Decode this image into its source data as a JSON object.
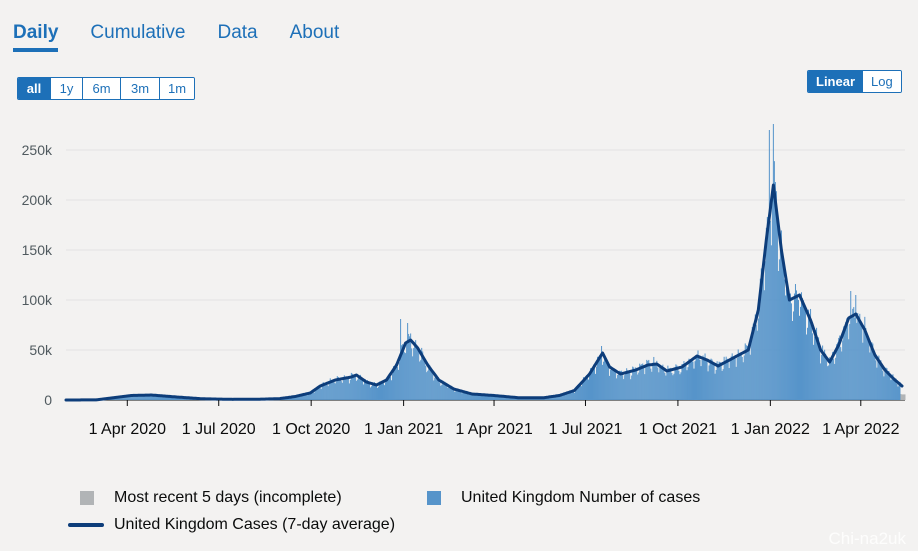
{
  "tabs": [
    {
      "label": "Daily",
      "active": true
    },
    {
      "label": "Cumulative",
      "active": false
    },
    {
      "label": "Data",
      "active": false
    },
    {
      "label": "About",
      "active": false
    }
  ],
  "range_buttons": [
    {
      "label": "all",
      "active": true
    },
    {
      "label": "1y",
      "active": false
    },
    {
      "label": "6m",
      "active": false
    },
    {
      "label": "3m",
      "active": false
    },
    {
      "label": "1m",
      "active": false
    }
  ],
  "scale_buttons": [
    {
      "label": "Linear",
      "active": true
    },
    {
      "label": "Log",
      "active": false
    }
  ],
  "legend": {
    "incomplete": "Most recent 5 days (incomplete)",
    "cases": "United Kingdom Number of cases",
    "average": "United Kingdom Cases (7-day average)"
  },
  "colors": {
    "bar": "#5694ca",
    "line": "#0d3d7a",
    "incomplete": "#b1b4b6",
    "accent": "#1d70b8"
  },
  "watermark": "Chi-na2uk",
  "chart_data": {
    "type": "bar",
    "grid": true,
    "ylim": [
      0,
      280000
    ],
    "yticks": [
      0,
      50000,
      100000,
      150000,
      200000,
      250000
    ],
    "ytick_labels": [
      "0",
      "50k",
      "100k",
      "150k",
      "200k",
      "250k"
    ],
    "xticks": [
      "2020-04-01",
      "2020-07-01",
      "2020-10-01",
      "2021-01-01",
      "2021-04-01",
      "2021-07-01",
      "2021-10-01",
      "2022-01-01",
      "2022-04-01"
    ],
    "xtick_labels": [
      "1 Apr 2020",
      "1 Jul 2020",
      "1 Oct 2020",
      "1 Jan 2021",
      "1 Apr 2021",
      "1 Jul 2021",
      "1 Oct 2021",
      "1 Jan 2022",
      "1 Apr 2022"
    ],
    "x_start": "2020-01-31",
    "x_end": "2022-05-15",
    "series": [
      {
        "name": "United Kingdom Cases (7-day average)",
        "type": "line",
        "points": [
          [
            "2020-01-31",
            0
          ],
          [
            "2020-03-01",
            100
          ],
          [
            "2020-03-20",
            2500
          ],
          [
            "2020-04-05",
            4500
          ],
          [
            "2020-04-25",
            5000
          ],
          [
            "2020-05-20",
            3000
          ],
          [
            "2020-06-15",
            1200
          ],
          [
            "2020-07-15",
            650
          ],
          [
            "2020-08-10",
            800
          ],
          [
            "2020-08-30",
            1300
          ],
          [
            "2020-09-15",
            3500
          ],
          [
            "2020-09-30",
            7000
          ],
          [
            "2020-10-10",
            14000
          ],
          [
            "2020-10-25",
            20000
          ],
          [
            "2020-11-10",
            23000
          ],
          [
            "2020-11-15",
            25000
          ],
          [
            "2020-11-25",
            18000
          ],
          [
            "2020-12-05",
            15000
          ],
          [
            "2020-12-15",
            20000
          ],
          [
            "2020-12-25",
            35000
          ],
          [
            "2021-01-03",
            57000
          ],
          [
            "2021-01-08",
            60000
          ],
          [
            "2021-01-15",
            52000
          ],
          [
            "2021-01-25",
            35000
          ],
          [
            "2021-02-05",
            20000
          ],
          [
            "2021-02-20",
            11000
          ],
          [
            "2021-03-10",
            6000
          ],
          [
            "2021-04-01",
            4500
          ],
          [
            "2021-04-25",
            2300
          ],
          [
            "2021-05-20",
            2200
          ],
          [
            "2021-06-05",
            4500
          ],
          [
            "2021-06-20",
            9500
          ],
          [
            "2021-07-05",
            26000
          ],
          [
            "2021-07-18",
            47000
          ],
          [
            "2021-07-25",
            33000
          ],
          [
            "2021-08-05",
            26000
          ],
          [
            "2021-08-20",
            30000
          ],
          [
            "2021-09-01",
            35000
          ],
          [
            "2021-09-10",
            36000
          ],
          [
            "2021-09-20",
            29000
          ],
          [
            "2021-10-05",
            33000
          ],
          [
            "2021-10-20",
            44000
          ],
          [
            "2021-10-30",
            40000
          ],
          [
            "2021-11-10",
            34000
          ],
          [
            "2021-11-25",
            42000
          ],
          [
            "2021-12-10",
            50000
          ],
          [
            "2021-12-20",
            90000
          ],
          [
            "2021-12-28",
            160000
          ],
          [
            "2022-01-04",
            215000
          ],
          [
            "2022-01-12",
            150000
          ],
          [
            "2022-01-20",
            100000
          ],
          [
            "2022-01-30",
            105000
          ],
          [
            "2022-02-10",
            80000
          ],
          [
            "2022-02-20",
            50000
          ],
          [
            "2022-03-01",
            38000
          ],
          [
            "2022-03-10",
            55000
          ],
          [
            "2022-03-20",
            82000
          ],
          [
            "2022-03-27",
            86000
          ],
          [
            "2022-04-05",
            70000
          ],
          [
            "2022-04-15",
            45000
          ],
          [
            "2022-04-25",
            30000
          ],
          [
            "2022-05-05",
            20000
          ],
          [
            "2022-05-12",
            14000
          ]
        ]
      },
      {
        "name": "United Kingdom Number of cases",
        "type": "bar",
        "spikes": [
          [
            "2020-12-29",
            81000
          ],
          [
            "2021-01-05",
            77000
          ],
          [
            "2021-07-17",
            54000
          ],
          [
            "2021-12-29",
            183000
          ],
          [
            "2021-12-31",
            270000
          ],
          [
            "2022-01-04",
            276000
          ],
          [
            "2022-01-06",
            218000
          ],
          [
            "2022-03-22",
            109000
          ],
          [
            "2022-03-27",
            105000
          ]
        ]
      },
      {
        "name": "Most recent 5 days (incomplete)",
        "type": "bar",
        "from": "2022-05-11"
      }
    ]
  }
}
